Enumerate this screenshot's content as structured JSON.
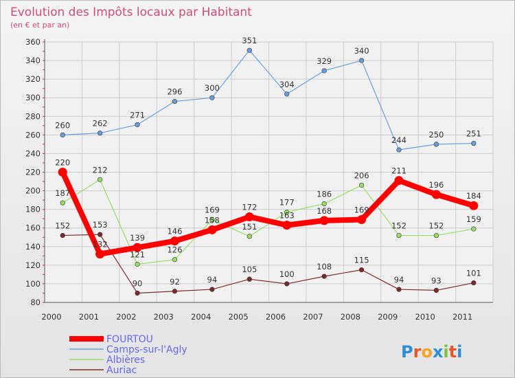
{
  "chart_data": {
    "type": "line",
    "title": "Evolution des Impôts locaux par Habitant",
    "subtitle": "(en € et par an)",
    "xlabel": "",
    "ylabel": "",
    "x": [
      "2000",
      "2001",
      "2002",
      "2003",
      "2004",
      "2005",
      "2006",
      "2007",
      "2008",
      "2009",
      "2010",
      "2011"
    ],
    "ylim": [
      80,
      360
    ],
    "yticks": [
      80,
      100,
      120,
      140,
      160,
      180,
      200,
      220,
      240,
      260,
      280,
      300,
      320,
      340,
      360
    ],
    "grid": true,
    "legend_position": "bottom-left",
    "series": [
      {
        "name": "FOURTOU",
        "color": "#ff0000",
        "values": [
          220,
          132,
          139,
          146,
          158,
          172,
          163,
          168,
          169,
          211,
          196,
          184
        ]
      },
      {
        "name": "Camps-sur-l'Agly",
        "color": "#6b9ed6",
        "values": [
          260,
          262,
          271,
          296,
          300,
          351,
          304,
          329,
          340,
          244,
          250,
          251
        ]
      },
      {
        "name": "Albières",
        "color": "#99dd66",
        "values": [
          187,
          212,
          121,
          126,
          169,
          151,
          177,
          186,
          206,
          152,
          152,
          159
        ]
      },
      {
        "name": "Auriac",
        "color": "#7a2c2c",
        "values": [
          152,
          153,
          90,
          92,
          94,
          105,
          100,
          108,
          115,
          94,
          93,
          101
        ]
      }
    ]
  },
  "logo": {
    "text": "Proxiti"
  }
}
